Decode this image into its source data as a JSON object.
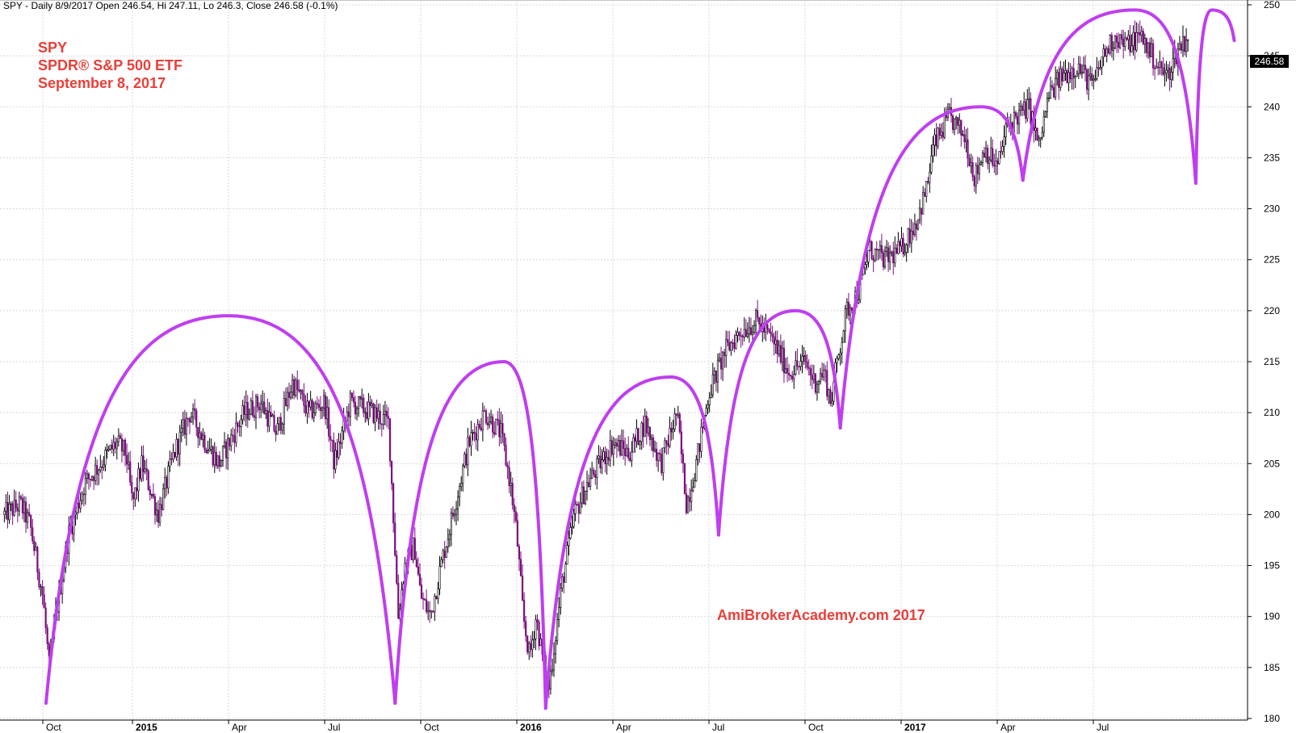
{
  "header": {
    "text": "SPY - Daily 8/9/2017 Open 246.54, Hi 247.11, Lo 246.3, Close 246.58 (-0.1%)"
  },
  "title": {
    "line1": "SPY",
    "line2": "SPDR® S&P 500 ETF",
    "line3": "September 8, 2017"
  },
  "watermark": "AmiBrokerAcademy.com  2017",
  "last_price_label": "246.58",
  "colors": {
    "accent_text": "#e8403a",
    "cycle_arc": "#bf3ef0",
    "bar_up": "#000000",
    "bar_down": "#7b0f7f",
    "grid": "#d8d8d8"
  },
  "chart_data": {
    "type": "candlestick",
    "ylim": [
      180,
      250
    ],
    "y_ticks": [
      180,
      185,
      190,
      195,
      200,
      205,
      210,
      215,
      220,
      225,
      230,
      235,
      240,
      245,
      250
    ],
    "x_tick_labels": [
      "Oct",
      "2015",
      "Apr",
      "Jul",
      "Oct",
      "2016",
      "Apr",
      "Jul",
      "Oct",
      "2017",
      "Apr",
      "Jul"
    ],
    "x_tick_positions": [
      0.2,
      3.0,
      6.0,
      9.0,
      12.0,
      15.0,
      18.0,
      21.0,
      24.0,
      27.0,
      30.0,
      33.0
    ],
    "x_range": [
      -1.0,
      40.0
    ],
    "price_path": [
      [
        -1.0,
        200
      ],
      [
        -0.5,
        201
      ],
      [
        -0.2,
        199
      ],
      [
        0.2,
        192
      ],
      [
        0.4,
        185
      ],
      [
        0.6,
        190
      ],
      [
        1.0,
        198
      ],
      [
        1.5,
        203
      ],
      [
        2.0,
        205
      ],
      [
        2.5,
        207
      ],
      [
        2.8,
        206
      ],
      [
        3.0,
        201
      ],
      [
        3.3,
        205
      ],
      [
        3.8,
        200
      ],
      [
        4.3,
        206
      ],
      [
        4.8,
        210
      ],
      [
        5.3,
        207
      ],
      [
        5.7,
        205
      ],
      [
        6.0,
        207
      ],
      [
        6.5,
        210
      ],
      [
        7.0,
        211
      ],
      [
        7.5,
        208
      ],
      [
        8.0,
        213
      ],
      [
        8.5,
        210
      ],
      [
        9.0,
        211
      ],
      [
        9.3,
        205
      ],
      [
        9.8,
        211
      ],
      [
        10.5,
        210
      ],
      [
        11.0,
        209
      ],
      [
        11.3,
        190
      ],
      [
        11.5,
        195
      ],
      [
        11.8,
        197
      ],
      [
        12.0,
        192
      ],
      [
        12.3,
        190
      ],
      [
        12.7,
        196
      ],
      [
        13.0,
        200
      ],
      [
        13.5,
        207
      ],
      [
        14.0,
        210
      ],
      [
        14.5,
        208
      ],
      [
        14.8,
        203
      ],
      [
        15.0,
        198
      ],
      [
        15.2,
        190
      ],
      [
        15.4,
        186
      ],
      [
        15.6,
        190
      ],
      [
        15.8,
        186
      ],
      [
        16.0,
        183
      ],
      [
        16.4,
        193
      ],
      [
        16.8,
        200
      ],
      [
        17.2,
        203
      ],
      [
        17.6,
        205
      ],
      [
        18.0,
        207
      ],
      [
        18.5,
        206
      ],
      [
        19.0,
        209
      ],
      [
        19.5,
        205
      ],
      [
        20.0,
        210
      ],
      [
        20.3,
        201
      ],
      [
        20.6,
        205
      ],
      [
        21.0,
        212
      ],
      [
        21.5,
        216
      ],
      [
        22.0,
        218
      ],
      [
        22.5,
        219
      ],
      [
        23.0,
        217
      ],
      [
        23.5,
        214
      ],
      [
        24.0,
        215
      ],
      [
        24.3,
        213
      ],
      [
        24.6,
        214
      ],
      [
        24.8,
        211
      ],
      [
        25.0,
        215
      ],
      [
        25.3,
        220
      ],
      [
        25.7,
        222
      ],
      [
        26.0,
        226
      ],
      [
        26.5,
        225
      ],
      [
        27.0,
        226
      ],
      [
        27.5,
        229
      ],
      [
        27.8,
        232
      ],
      [
        28.0,
        236
      ],
      [
        28.5,
        239
      ],
      [
        29.0,
        237
      ],
      [
        29.3,
        233
      ],
      [
        29.6,
        236
      ],
      [
        30.0,
        234
      ],
      [
        30.3,
        238
      ],
      [
        30.6,
        239
      ],
      [
        31.0,
        240
      ],
      [
        31.3,
        236
      ],
      [
        31.6,
        241
      ],
      [
        32.0,
        243
      ],
      [
        32.5,
        244
      ],
      [
        33.0,
        242
      ],
      [
        33.3,
        245
      ],
      [
        33.7,
        247
      ],
      [
        34.0,
        246
      ],
      [
        34.5,
        247
      ],
      [
        35.0,
        244
      ],
      [
        35.3,
        243
      ],
      [
        35.7,
        246
      ],
      [
        36.0,
        247
      ]
    ],
    "cycle_arcs": [
      {
        "start": [
          0.3,
          181.5
        ],
        "peak": [
          6.0,
          219.5
        ],
        "end": [
          11.2,
          181.5
        ]
      },
      {
        "start": [
          11.2,
          181.5
        ],
        "peak": [
          14.6,
          215.0
        ],
        "end": [
          15.9,
          181.0
        ]
      },
      {
        "start": [
          15.9,
          181.0
        ],
        "peak": [
          19.8,
          213.5
        ],
        "end": [
          21.3,
          198.0
        ]
      },
      {
        "start": [
          21.3,
          198.0
        ],
        "peak": [
          23.7,
          220.0
        ],
        "end": [
          25.1,
          208.5
        ]
      },
      {
        "start": [
          25.1,
          208.5
        ],
        "peak": [
          29.5,
          240.0
        ],
        "end": [
          30.8,
          232.8
        ]
      },
      {
        "start": [
          30.8,
          232.8
        ],
        "peak": [
          34.3,
          249.5
        ],
        "end": [
          36.2,
          232.5
        ]
      },
      {
        "start": [
          36.2,
          232.5
        ],
        "peak": [
          36.7,
          249.5
        ],
        "end": [
          37.4,
          246.5
        ]
      }
    ]
  }
}
